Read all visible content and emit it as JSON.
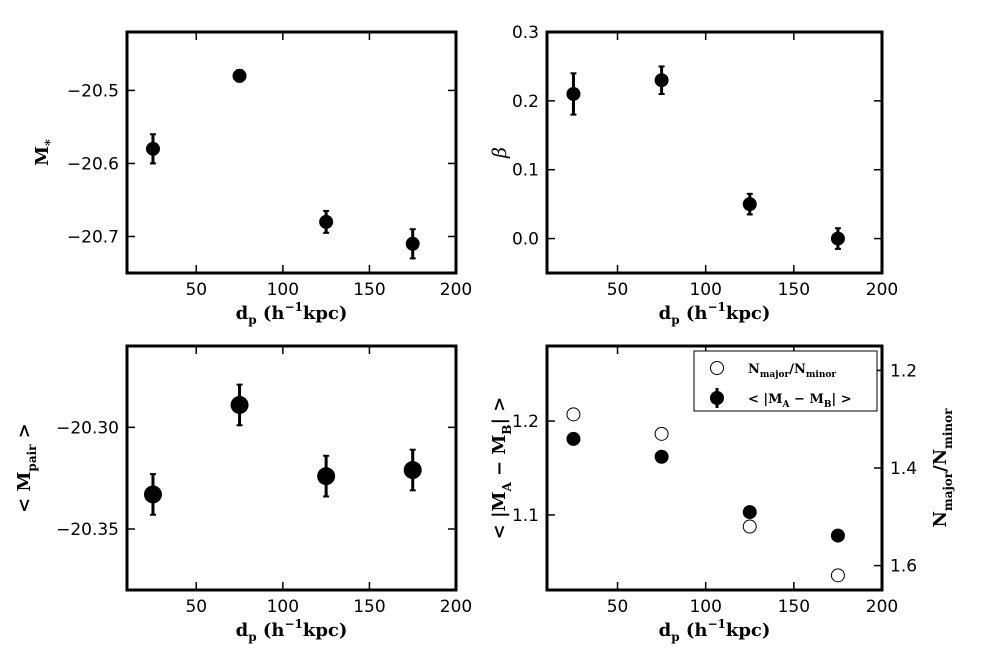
{
  "chart_data": [
    {
      "id": "top-left",
      "type": "scatter",
      "xlabel": "d_p (h^-1 kpc)",
      "ylabel": "M_*",
      "xlim": [
        10,
        200
      ],
      "ylim": [
        -20.75,
        -20.42
      ],
      "xticks": [
        50,
        100,
        150,
        200
      ],
      "yticks": [
        -20.5,
        -20.6,
        -20.7
      ],
      "ytick_labels": [
        "−20.5",
        "−20.6",
        "−20.7"
      ],
      "series": [
        {
          "marker": "filled",
          "x": [
            25,
            75,
            125,
            175
          ],
          "y": [
            -20.58,
            -20.48,
            -20.68,
            -20.71
          ],
          "yerr": [
            0.02,
            0.008,
            0.015,
            0.02
          ]
        }
      ]
    },
    {
      "id": "top-right",
      "type": "scatter",
      "xlabel": "d_p (h^-1 kpc)",
      "ylabel": "β",
      "xlim": [
        10,
        200
      ],
      "ylim": [
        -0.05,
        0.3
      ],
      "xticks": [
        50,
        100,
        150,
        200
      ],
      "yticks": [
        0.0,
        0.1,
        0.2,
        0.3
      ],
      "ytick_labels": [
        "0.0",
        "0.1",
        "0.2",
        "0.3"
      ],
      "series": [
        {
          "marker": "filled",
          "x": [
            25,
            75,
            125,
            175
          ],
          "y": [
            0.21,
            0.23,
            0.05,
            0.0
          ],
          "yerr": [
            0.03,
            0.02,
            0.015,
            0.015
          ]
        }
      ]
    },
    {
      "id": "bottom-left",
      "type": "scatter",
      "xlabel": "d_p (h^-1 kpc)",
      "ylabel": "< M_pair >",
      "xlim": [
        10,
        200
      ],
      "ylim": [
        -20.38,
        -20.26
      ],
      "xticks": [
        50,
        100,
        150,
        200
      ],
      "yticks": [
        -20.3,
        -20.35
      ],
      "ytick_labels": [
        "−20.30",
        "−20.35"
      ],
      "series": [
        {
          "marker": "filled",
          "x": [
            25,
            75,
            125,
            175
          ],
          "y": [
            -20.333,
            -20.289,
            -20.324,
            -20.321
          ],
          "yerr": [
            0.01,
            0.01,
            0.01,
            0.01
          ]
        }
      ]
    },
    {
      "id": "bottom-right",
      "type": "scatter",
      "xlabel": "d_p (h^-1 kpc)",
      "ylabel": "< |M_A − M_B| >",
      "ylabel_right": "N_major / N_minor",
      "xlim": [
        10,
        200
      ],
      "ylim": [
        1.02,
        1.28
      ],
      "ylim_right": [
        1.65,
        1.15
      ],
      "xticks": [
        50,
        100,
        150,
        200
      ],
      "yticks": [
        1.1,
        1.2
      ],
      "ytick_labels": [
        "1.1",
        "1.2"
      ],
      "yticks_right": [
        1.2,
        1.4,
        1.6
      ],
      "ytick_labels_right": [
        "1.2",
        "1.4",
        "1.6"
      ],
      "legend": {
        "location": "top-right",
        "entries": [
          "N_major/N_minor",
          "< |M_A − M_B| >"
        ]
      },
      "series": [
        {
          "name": "N_major/N_minor",
          "marker": "open",
          "axis": "right",
          "x": [
            25,
            75,
            125,
            175
          ],
          "y": [
            1.29,
            1.33,
            1.52,
            1.62
          ]
        },
        {
          "name": "< |M_A − M_B| >",
          "marker": "filled",
          "axis": "left",
          "x": [
            25,
            75,
            125,
            175
          ],
          "y": [
            1.181,
            1.162,
            1.103,
            1.078
          ],
          "yerr": [
            0.003,
            0.003,
            0.003,
            0.003
          ]
        }
      ]
    }
  ]
}
